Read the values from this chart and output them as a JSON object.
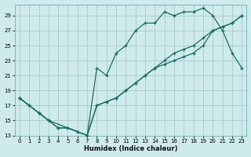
{
  "xlabel": "Humidex (Indice chaleur)",
  "bg_color": "#ceeaea",
  "grid_color": "#aacece",
  "line_color": "#1a6b5e",
  "xlim": [
    -0.5,
    23.5
  ],
  "ylim": [
    13,
    30.5
  ],
  "xticks": [
    0,
    1,
    2,
    3,
    4,
    5,
    6,
    7,
    8,
    9,
    10,
    11,
    12,
    13,
    14,
    15,
    16,
    17,
    18,
    19,
    20,
    21,
    22,
    23
  ],
  "yticks": [
    13,
    15,
    17,
    19,
    21,
    23,
    25,
    27,
    29
  ],
  "line1_x": [
    0,
    1,
    2,
    3,
    4,
    5,
    6,
    7,
    8,
    9,
    10,
    11,
    12,
    13,
    14,
    15,
    16,
    17,
    18,
    19,
    20,
    21,
    22,
    23
  ],
  "line1_y": [
    18,
    17,
    16,
    15,
    14,
    14,
    13.5,
    13,
    22,
    21,
    24,
    25,
    27,
    28,
    28,
    29.5,
    29,
    29.5,
    29.5,
    30,
    29,
    27,
    24,
    22
  ],
  "line2_x": [
    0,
    2,
    3,
    7,
    8,
    9,
    10,
    11,
    12,
    13,
    14,
    15,
    16,
    17,
    18,
    19,
    20,
    21,
    22,
    23
  ],
  "line2_y": [
    18,
    16,
    15,
    13,
    17,
    17.5,
    18,
    19,
    20,
    21,
    22,
    23,
    24,
    24.5,
    25,
    26,
    27,
    27.5,
    28,
    29
  ],
  "line3_x": [
    0,
    1,
    2,
    3,
    4,
    5,
    6,
    7,
    8,
    9,
    10,
    11,
    12,
    13,
    14,
    15,
    16,
    17,
    18,
    19,
    20,
    21,
    22,
    23
  ],
  "line3_y": [
    18,
    17,
    16,
    15,
    14,
    14,
    13.5,
    13,
    17,
    17.5,
    18,
    19,
    20,
    21,
    22,
    22.5,
    23,
    23.5,
    24,
    25,
    27,
    27.5,
    28,
    29
  ]
}
